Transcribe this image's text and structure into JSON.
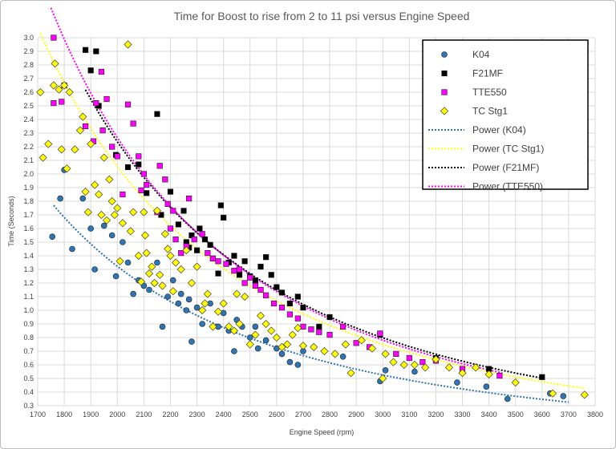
{
  "chart_data": {
    "type": "scatter",
    "title": "Time for Boost to rise from 2 to 11 psi versus Engine Speed",
    "xlabel": "Engine Speed (rpm)",
    "ylabel": "Time (Seconds)",
    "xlim": [
      1700,
      3800
    ],
    "ylim": [
      0.3,
      3.0
    ],
    "x_ticks": [
      1700,
      1800,
      1900,
      2000,
      2100,
      2200,
      2300,
      2400,
      2500,
      2600,
      2700,
      2800,
      2900,
      3000,
      3100,
      3200,
      3300,
      3400,
      3500,
      3600,
      3700,
      3800
    ],
    "y_ticks": [
      "0.3",
      "0.4",
      "0.5",
      "0.6",
      "0.7",
      "0.8",
      "0.9",
      "1.0",
      "1.1",
      "1.2",
      "1.3",
      "1.4",
      "1.5",
      "1.6",
      "1.7",
      "1.8",
      "1.9",
      "2.0",
      "2.1",
      "2.2",
      "2.3",
      "2.4",
      "2.5",
      "2.6",
      "2.7",
      "2.8",
      "2.9",
      "3.0"
    ],
    "grid": true,
    "legend_position": "top-right",
    "series": [
      {
        "name": "K04",
        "marker": "circle",
        "color": "#2e75b6",
        "points": [
          [
            1755,
            1.54
          ],
          [
            1785,
            1.82
          ],
          [
            1800,
            2.03
          ],
          [
            1830,
            1.45
          ],
          [
            1870,
            1.82
          ],
          [
            1900,
            1.6
          ],
          [
            1915,
            1.3
          ],
          [
            1950,
            1.62
          ],
          [
            1980,
            1.55
          ],
          [
            1995,
            1.25
          ],
          [
            2020,
            1.5
          ],
          [
            2040,
            1.35
          ],
          [
            2060,
            1.12
          ],
          [
            2080,
            1.22
          ],
          [
            2100,
            1.18
          ],
          [
            2120,
            1.15
          ],
          [
            2140,
            1.2
          ],
          [
            2150,
            1.35
          ],
          [
            2170,
            0.88
          ],
          [
            2190,
            1.1
          ],
          [
            2210,
            1.22
          ],
          [
            2230,
            1.05
          ],
          [
            2240,
            1.12
          ],
          [
            2260,
            1.0
          ],
          [
            2270,
            1.08
          ],
          [
            2280,
            0.77
          ],
          [
            2300,
            1.02
          ],
          [
            2320,
            0.9
          ],
          [
            2350,
            1.05
          ],
          [
            2380,
            0.88
          ],
          [
            2400,
            0.98
          ],
          [
            2420,
            0.85
          ],
          [
            2440,
            0.7
          ],
          [
            2450,
            0.93
          ],
          [
            2470,
            0.88
          ],
          [
            2500,
            0.8
          ],
          [
            2520,
            0.88
          ],
          [
            2530,
            0.72
          ],
          [
            2560,
            0.78
          ],
          [
            2600,
            0.72
          ],
          [
            2620,
            0.68
          ],
          [
            2650,
            0.62
          ],
          [
            2680,
            0.6
          ],
          [
            2700,
            0.7
          ],
          [
            2850,
            0.66
          ],
          [
            2990,
            0.48
          ],
          [
            3010,
            0.56
          ],
          [
            3120,
            0.55
          ],
          [
            3280,
            0.47
          ],
          [
            3390,
            0.44
          ],
          [
            3470,
            0.35
          ],
          [
            3630,
            0.39
          ],
          [
            3680,
            0.37
          ]
        ]
      },
      {
        "name": "F21MF",
        "marker": "square",
        "color": "#000000",
        "points": [
          [
            1880,
            2.91
          ],
          [
            1900,
            2.76
          ],
          [
            1920,
            2.9
          ],
          [
            1930,
            2.5
          ],
          [
            1995,
            2.14
          ],
          [
            2040,
            2.05
          ],
          [
            2080,
            2.07
          ],
          [
            2110,
            1.86
          ],
          [
            2150,
            2.44
          ],
          [
            2165,
            1.7
          ],
          [
            2200,
            1.87
          ],
          [
            2230,
            1.63
          ],
          [
            2250,
            1.73
          ],
          [
            2260,
            1.5
          ],
          [
            2270,
            1.46
          ],
          [
            2280,
            1.55
          ],
          [
            2300,
            1.44
          ],
          [
            2310,
            1.6
          ],
          [
            2330,
            1.52
          ],
          [
            2350,
            1.48
          ],
          [
            2360,
            1.38
          ],
          [
            2380,
            1.27
          ],
          [
            2390,
            1.77
          ],
          [
            2400,
            1.68
          ],
          [
            2420,
            1.35
          ],
          [
            2440,
            1.4
          ],
          [
            2460,
            1.26
          ],
          [
            2480,
            1.36
          ],
          [
            2500,
            1.25
          ],
          [
            2520,
            1.22
          ],
          [
            2540,
            1.32
          ],
          [
            2560,
            1.39
          ],
          [
            2580,
            1.26
          ],
          [
            2600,
            1.17
          ],
          [
            2620,
            1.13
          ],
          [
            2650,
            1.05
          ],
          [
            2680,
            1.1
          ],
          [
            2700,
            1.02
          ],
          [
            2760,
            0.88
          ],
          [
            2800,
            0.95
          ],
          [
            2990,
            0.82
          ],
          [
            3200,
            0.65
          ],
          [
            3400,
            0.57
          ],
          [
            3600,
            0.51
          ]
        ]
      },
      {
        "name": "TTE550",
        "marker": "square",
        "color": "#ff00ff",
        "points": [
          [
            1760,
            3.0
          ],
          [
            1760,
            2.52
          ],
          [
            1790,
            2.53
          ],
          [
            1800,
            2.65
          ],
          [
            1880,
            2.35
          ],
          [
            1910,
            2.24
          ],
          [
            1920,
            2.52
          ],
          [
            1940,
            2.75
          ],
          [
            1945,
            2.32
          ],
          [
            1960,
            2.55
          ],
          [
            1980,
            2.2
          ],
          [
            2000,
            2.13
          ],
          [
            2020,
            1.85
          ],
          [
            2040,
            2.51
          ],
          [
            2060,
            2.37
          ],
          [
            2080,
            2.13
          ],
          [
            2090,
            1.88
          ],
          [
            2100,
            2.0
          ],
          [
            2110,
            1.92
          ],
          [
            2150,
            1.72
          ],
          [
            2160,
            2.06
          ],
          [
            2180,
            1.96
          ],
          [
            2190,
            1.78
          ],
          [
            2200,
            1.6
          ],
          [
            2210,
            1.73
          ],
          [
            2220,
            1.52
          ],
          [
            2240,
            1.42
          ],
          [
            2260,
            1.47
          ],
          [
            2270,
            1.82
          ],
          [
            2290,
            1.52
          ],
          [
            2320,
            1.56
          ],
          [
            2340,
            1.42
          ],
          [
            2360,
            1.38
          ],
          [
            2380,
            1.36
          ],
          [
            2410,
            1.34
          ],
          [
            2440,
            1.29
          ],
          [
            2460,
            1.3
          ],
          [
            2480,
            1.2
          ],
          [
            2500,
            1.24
          ],
          [
            2520,
            1.18
          ],
          [
            2540,
            1.15
          ],
          [
            2560,
            1.11
          ],
          [
            2590,
            1.05
          ],
          [
            2620,
            1.02
          ],
          [
            2650,
            0.97
          ],
          [
            2680,
            0.94
          ],
          [
            2700,
            0.88
          ],
          [
            2730,
            0.86
          ],
          [
            2760,
            0.84
          ],
          [
            2800,
            0.82
          ],
          [
            2850,
            0.88
          ],
          [
            2900,
            0.76
          ],
          [
            2950,
            0.73
          ],
          [
            2990,
            0.83
          ],
          [
            3050,
            0.68
          ],
          [
            3100,
            0.65
          ],
          [
            3150,
            0.62
          ],
          [
            3200,
            0.63
          ],
          [
            3300,
            0.57
          ],
          [
            3440,
            0.52
          ]
        ]
      },
      {
        "name": "TC Stg1",
        "marker": "diamond",
        "color": "#ffff00",
        "points": [
          [
            1710,
            2.6
          ],
          [
            1720,
            2.12
          ],
          [
            1740,
            2.22
          ],
          [
            1760,
            2.65
          ],
          [
            1765,
            2.81
          ],
          [
            1780,
            2.62
          ],
          [
            1790,
            2.18
          ],
          [
            1800,
            2.65
          ],
          [
            1810,
            2.04
          ],
          [
            1820,
            2.6
          ],
          [
            1840,
            2.18
          ],
          [
            1860,
            2.32
          ],
          [
            1870,
            2.42
          ],
          [
            1880,
            1.87
          ],
          [
            1890,
            1.72
          ],
          [
            1900,
            2.22
          ],
          [
            1915,
            1.92
          ],
          [
            1930,
            1.85
          ],
          [
            1940,
            1.7
          ],
          [
            1950,
            2.12
          ],
          [
            1960,
            1.66
          ],
          [
            1970,
            1.96
          ],
          [
            1980,
            1.8
          ],
          [
            1990,
            1.7
          ],
          [
            2000,
            1.75
          ],
          [
            2010,
            1.36
          ],
          [
            2020,
            1.64
          ],
          [
            2040,
            2.95
          ],
          [
            2050,
            1.58
          ],
          [
            2060,
            1.72
          ],
          [
            2080,
            1.4
          ],
          [
            2090,
            1.21
          ],
          [
            2100,
            1.72
          ],
          [
            2105,
            1.55
          ],
          [
            2110,
            1.42
          ],
          [
            2120,
            1.27
          ],
          [
            2130,
            1.32
          ],
          [
            2140,
            1.2
          ],
          [
            2150,
            1.73
          ],
          [
            2160,
            1.26
          ],
          [
            2170,
            1.18
          ],
          [
            2180,
            1.56
          ],
          [
            2190,
            1.45
          ],
          [
            2200,
            1.4
          ],
          [
            2210,
            1.14
          ],
          [
            2220,
            1.35
          ],
          [
            2240,
            1.3
          ],
          [
            2260,
            1.44
          ],
          [
            2280,
            1.2
          ],
          [
            2300,
            1.32
          ],
          [
            2320,
            1.0
          ],
          [
            2330,
            1.05
          ],
          [
            2340,
            1.12
          ],
          [
            2360,
            0.88
          ],
          [
            2380,
            0.99
          ],
          [
            2400,
            1.05
          ],
          [
            2420,
            0.88
          ],
          [
            2440,
            0.85
          ],
          [
            2450,
            1.12
          ],
          [
            2460,
            0.9
          ],
          [
            2480,
            1.1
          ],
          [
            2500,
            0.75
          ],
          [
            2520,
            0.82
          ],
          [
            2540,
            0.96
          ],
          [
            2560,
            0.9
          ],
          [
            2580,
            0.85
          ],
          [
            2600,
            0.8
          ],
          [
            2620,
            0.73
          ],
          [
            2640,
            0.75
          ],
          [
            2660,
            0.82
          ],
          [
            2680,
            0.87
          ],
          [
            2700,
            0.74
          ],
          [
            2740,
            0.73
          ],
          [
            2780,
            0.7
          ],
          [
            2820,
            0.68
          ],
          [
            2860,
            0.75
          ],
          [
            2880,
            0.54
          ],
          [
            2920,
            0.78
          ],
          [
            2960,
            0.72
          ],
          [
            3000,
            0.5
          ],
          [
            3010,
            0.68
          ],
          [
            3040,
            0.62
          ],
          [
            3080,
            0.6
          ],
          [
            3120,
            0.6
          ],
          [
            3160,
            0.58
          ],
          [
            3200,
            0.64
          ],
          [
            3250,
            0.58
          ],
          [
            3300,
            0.54
          ],
          [
            3350,
            0.58
          ],
          [
            3400,
            0.53
          ],
          [
            3500,
            0.47
          ],
          [
            3640,
            0.39
          ],
          [
            3760,
            0.38
          ]
        ]
      }
    ],
    "trendlines": [
      {
        "name": "Power (K04)",
        "color": "#2e75b6",
        "a": 43376000.0,
        "b": -2.2768,
        "x_range": [
          1760,
          3700
        ]
      },
      {
        "name": "Power (TC Stg1)",
        "color": "#ffff00",
        "a": 332320000.0,
        "b": -2.4868,
        "x_range": [
          1710,
          3760
        ]
      },
      {
        "name": "Power (F21MF)",
        "color": "#000000",
        "a": 546860000.0,
        "b": -2.5411,
        "x_range": [
          1880,
          3600
        ]
      },
      {
        "name": "Power (TTE550)",
        "color": "#ff00ff",
        "a": 1068600000.0,
        "b": -2.6275,
        "x_range": [
          1750,
          3450
        ]
      }
    ]
  }
}
